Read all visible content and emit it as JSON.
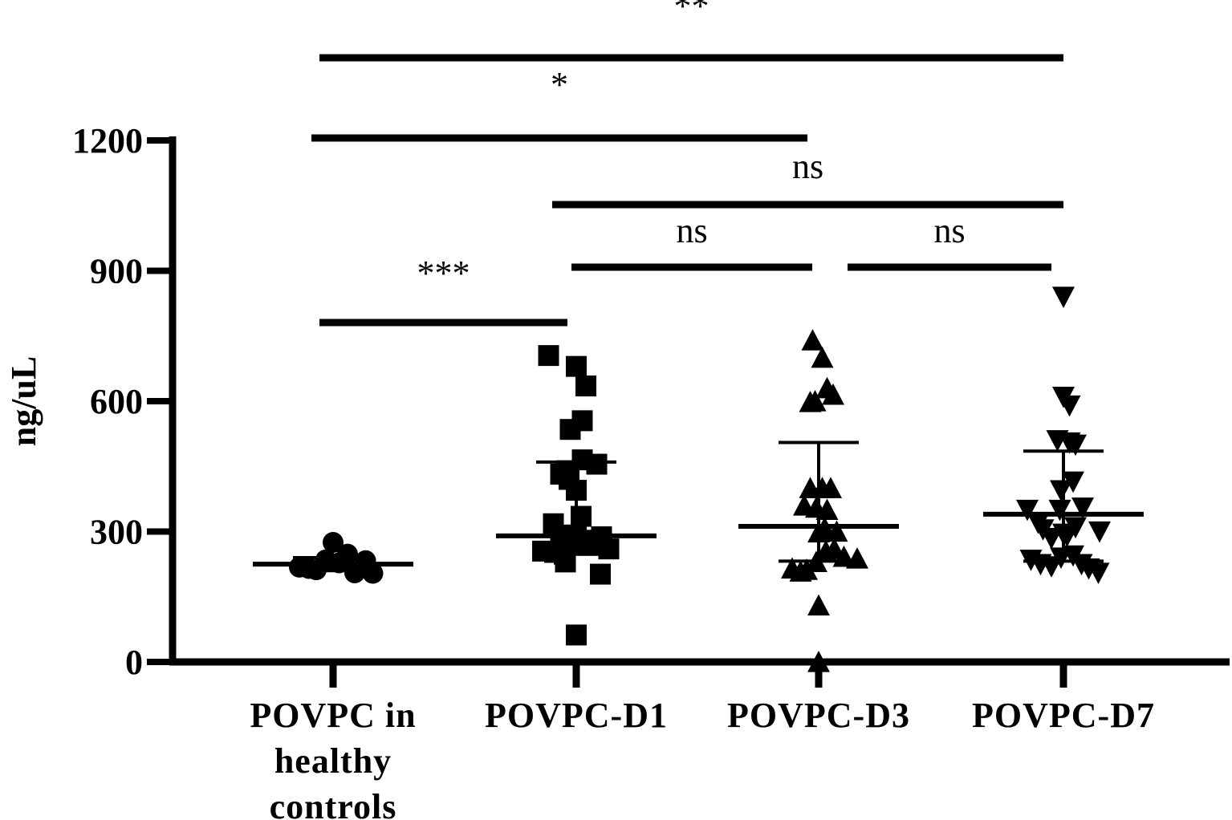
{
  "chart_data": {
    "type": "scatter",
    "ylabel": "ng/uL",
    "ylim": [
      0,
      1200
    ],
    "yticks": [
      0,
      300,
      600,
      900,
      1200
    ],
    "categories": [
      {
        "lines": [
          "POVPC in",
          "healthy",
          "controls"
        ],
        "marker": "circle"
      },
      {
        "lines": [
          "POVPC-D1"
        ],
        "marker": "square"
      },
      {
        "lines": [
          "POVPC-D3"
        ],
        "marker": "triangle-up"
      },
      {
        "lines": [
          "POVPC-D7"
        ],
        "marker": "triangle-down"
      }
    ],
    "series": [
      {
        "category": 0,
        "points": [
          [
            -0.28,
            218
          ],
          [
            -0.2,
            215
          ],
          [
            -0.14,
            212
          ],
          [
            -0.06,
            235
          ],
          [
            0.0,
            275
          ],
          [
            0.05,
            228
          ],
          [
            0.12,
            248
          ],
          [
            0.18,
            205
          ],
          [
            0.27,
            233
          ],
          [
            0.33,
            204
          ]
        ],
        "median": 225,
        "q1": 210,
        "q3": 240
      },
      {
        "category": 1,
        "points": [
          [
            -0.23,
            705
          ],
          [
            0.0,
            680
          ],
          [
            0.08,
            635
          ],
          [
            -0.05,
            535
          ],
          [
            0.05,
            555
          ],
          [
            0.05,
            465
          ],
          [
            0.17,
            455
          ],
          [
            -0.13,
            432
          ],
          [
            -0.08,
            440
          ],
          [
            -0.06,
            420
          ],
          [
            0.0,
            395
          ],
          [
            0.04,
            335
          ],
          [
            -0.19,
            318
          ],
          [
            -0.13,
            292
          ],
          [
            0.0,
            292
          ],
          [
            0.21,
            288
          ],
          [
            -0.28,
            255
          ],
          [
            -0.18,
            252
          ],
          [
            -0.1,
            248
          ],
          [
            -0.03,
            268
          ],
          [
            0.04,
            270
          ],
          [
            0.1,
            280
          ],
          [
            0.14,
            268
          ],
          [
            0.27,
            260
          ],
          [
            -0.09,
            230
          ],
          [
            0.2,
            202
          ],
          [
            0.0,
            62
          ]
        ],
        "median": 290,
        "q1": 258,
        "q3": 460
      },
      {
        "category": 2,
        "points": [
          [
            -0.05,
            740
          ],
          [
            0.03,
            700
          ],
          [
            -0.03,
            600
          ],
          [
            0.07,
            630
          ],
          [
            0.12,
            615
          ],
          [
            -0.07,
            598
          ],
          [
            -0.07,
            400
          ],
          [
            0.03,
            400
          ],
          [
            0.1,
            400
          ],
          [
            -0.12,
            360
          ],
          [
            -0.02,
            355
          ],
          [
            0.07,
            350
          ],
          [
            0.05,
            308
          ],
          [
            0.15,
            300
          ],
          [
            0.0,
            298
          ],
          [
            -0.22,
            215
          ],
          [
            -0.15,
            208
          ],
          [
            -0.1,
            212
          ],
          [
            -0.02,
            230
          ],
          [
            0.06,
            255
          ],
          [
            0.13,
            260
          ],
          [
            0.21,
            242
          ],
          [
            0.32,
            238
          ],
          [
            0.0,
            130
          ],
          [
            0.0,
            0
          ]
        ],
        "median": 312,
        "q1": 232,
        "q3": 505
      },
      {
        "category": 3,
        "points": [
          [
            0.0,
            840
          ],
          [
            0.0,
            610
          ],
          [
            0.05,
            590
          ],
          [
            -0.05,
            510
          ],
          [
            0.05,
            505
          ],
          [
            0.1,
            500
          ],
          [
            -0.02,
            395
          ],
          [
            0.08,
            415
          ],
          [
            -0.3,
            350
          ],
          [
            -0.21,
            320
          ],
          [
            -0.03,
            350
          ],
          [
            0.16,
            355
          ],
          [
            0.1,
            310
          ],
          [
            0.3,
            300
          ],
          [
            -0.17,
            305
          ],
          [
            -0.1,
            285
          ],
          [
            0.0,
            295
          ],
          [
            0.03,
            290
          ],
          [
            -0.27,
            235
          ],
          [
            -0.19,
            225
          ],
          [
            -0.1,
            220
          ],
          [
            -0.02,
            240
          ],
          [
            0.08,
            245
          ],
          [
            0.15,
            225
          ],
          [
            0.21,
            215
          ],
          [
            0.29,
            205
          ]
        ],
        "median": 340,
        "q1": 232,
        "q3": 485
      }
    ],
    "comparisons": [
      {
        "from": 0,
        "to": 3,
        "label": "**"
      },
      {
        "from": 0,
        "to": 2,
        "label": "*"
      },
      {
        "from": 1,
        "to": 3,
        "label": "ns"
      },
      {
        "from": 1,
        "to": 2,
        "label": "ns"
      },
      {
        "from": 2,
        "to": 3,
        "label": "ns"
      },
      {
        "from": 0,
        "to": 1,
        "label": "***"
      }
    ]
  }
}
